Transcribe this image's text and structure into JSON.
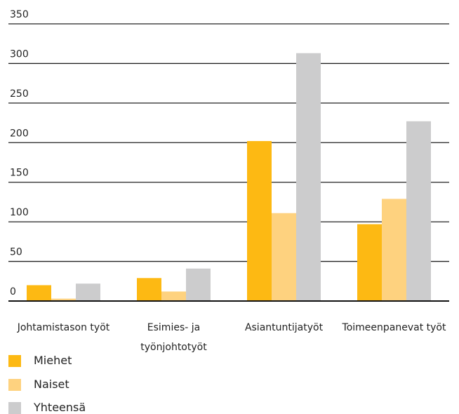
{
  "chart_data": {
    "type": "bar",
    "categories": [
      "Johtamistason työt",
      "Esimies- ja työnjohtotyöt",
      "Asiantuntijatyöt",
      "Toimeenpanevat työt"
    ],
    "series": [
      {
        "name": "Miehet",
        "color": "#fdb913",
        "values": [
          20,
          29,
          202,
          97
        ]
      },
      {
        "name": "Naiset",
        "color": "#fed27f",
        "values": [
          3,
          12,
          111,
          129
        ]
      },
      {
        "name": "Yhteensä",
        "color": "#cccccd",
        "values": [
          22,
          41,
          313,
          227
        ]
      }
    ],
    "ylim": [
      0,
      350
    ],
    "yticks": [
      0,
      50,
      100,
      150,
      200,
      250,
      300,
      350
    ],
    "grid": true
  }
}
